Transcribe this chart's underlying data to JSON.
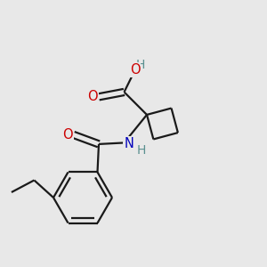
{
  "background_color": "#e8e8e8",
  "atom_colors": {
    "O": "#cc0000",
    "N": "#0000bb",
    "H_teal": "#5a9090"
  },
  "bond_color": "#1a1a1a",
  "bond_width": 1.6,
  "figsize": [
    3.0,
    3.0
  ],
  "dpi": 100,
  "xlim": [
    0,
    10
  ],
  "ylim": [
    0,
    10
  ]
}
